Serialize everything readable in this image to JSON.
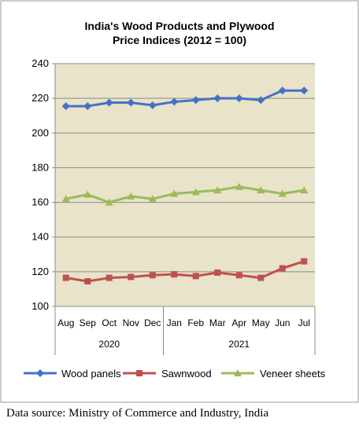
{
  "chart_data": {
    "type": "line",
    "title_lines": [
      "India's Wood Products and Plywood",
      "Price Indices (2012 = 100)"
    ],
    "categories": [
      "Aug",
      "Sep",
      "Oct",
      "Nov",
      "Dec",
      "Jan",
      "Feb",
      "Mar",
      "Apr",
      "May",
      "Jun",
      "Jul"
    ],
    "year_groups": [
      {
        "label": "2020",
        "count": 5
      },
      {
        "label": "2021",
        "count": 7
      }
    ],
    "ylim": [
      100,
      240
    ],
    "yticks": [
      100,
      120,
      140,
      160,
      180,
      200,
      220,
      240
    ],
    "grid": "horizontal",
    "plot_background": "#e8e3c9",
    "legend_position": "bottom",
    "series": [
      {
        "name": "Wood panels",
        "color": "#4472c4",
        "marker": "diamond",
        "values": [
          215.5,
          215.5,
          217.5,
          217.5,
          216,
          218,
          219,
          220,
          220,
          219,
          224.5,
          224.5
        ]
      },
      {
        "name": "Sawnwood",
        "color": "#c0504d",
        "marker": "square",
        "values": [
          116.5,
          114.5,
          116.5,
          117,
          118,
          118.5,
          117.5,
          119.5,
          118,
          116.5,
          122,
          126
        ]
      },
      {
        "name": "Veneer sheets",
        "color": "#9bbb59",
        "marker": "triangle",
        "values": [
          162,
          164.5,
          160,
          163.5,
          162,
          165,
          166,
          167,
          169,
          167,
          165,
          167
        ]
      }
    ]
  },
  "source_text": "Data source: Ministry of Commerce and Industry, India"
}
